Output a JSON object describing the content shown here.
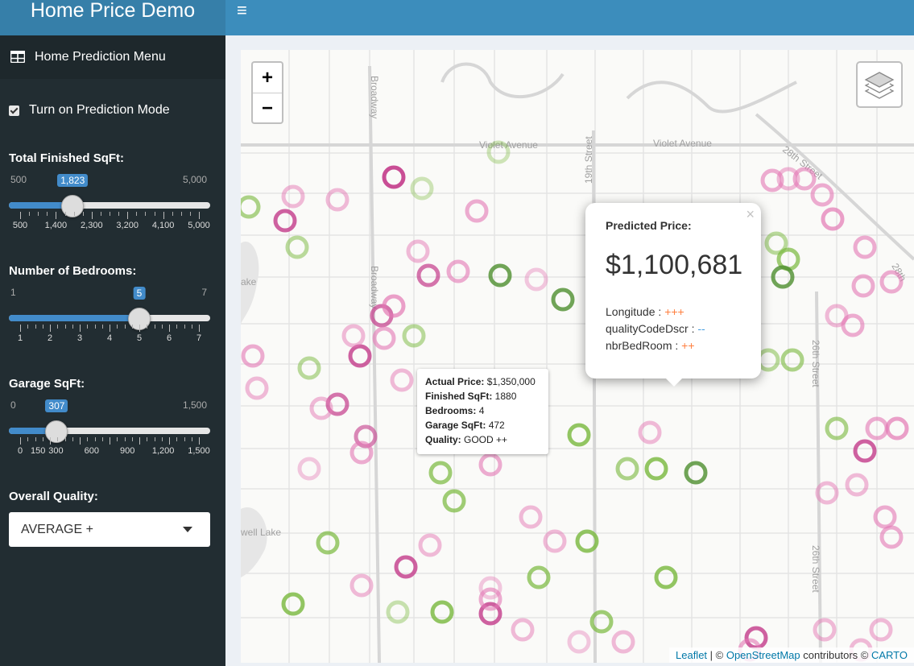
{
  "header": {
    "title": "Home Price Demo",
    "toggle_icon": "hamburger-icon"
  },
  "sidebar": {
    "menu_label": "Home Prediction Menu",
    "menu_icon": "table-icon",
    "prediction_mode": {
      "label": "Turn on Prediction Mode",
      "checked": true
    },
    "sliders": [
      {
        "label": "Total Finished SqFt:",
        "min": 500,
        "max": 5000,
        "value": 1823,
        "min_label": "500",
        "max_label": "5,000",
        "value_label": "1,823",
        "ticks": [
          "500",
          "1,400",
          "2,300",
          "3,200",
          "4,100",
          "5,000"
        ]
      },
      {
        "label": "Number of Bedrooms:",
        "min": 1,
        "max": 7,
        "value": 5,
        "min_label": "1",
        "max_label": "7",
        "value_label": "5",
        "ticks": [
          "1",
          "2",
          "3",
          "4",
          "5",
          "6",
          "7"
        ]
      },
      {
        "label": "Garage SqFt:",
        "min": 0,
        "max": 1500,
        "value": 307,
        "min_label": "0",
        "max_label": "1,500",
        "value_label": "307",
        "ticks": [
          "0",
          "150",
          "300",
          "600",
          "900",
          "1,200",
          "1,500"
        ]
      }
    ],
    "quality": {
      "label": "Overall Quality:",
      "value": "AVERAGE +"
    }
  },
  "map": {
    "streets": [
      "Broadway",
      "Violet Avenue",
      "Violet Avenue",
      "19th Street",
      "28th Street",
      "26th Street",
      "26th Street",
      "Broadway",
      "28th",
      "ake",
      "well Lake"
    ],
    "zoom_in": "+",
    "zoom_out": "−",
    "layers_icon": "layers-icon",
    "attribution": {
      "leaflet": "Leaflet",
      "sep": " | © ",
      "osm": "OpenStreetMap",
      "mid": " contributors © ",
      "carto": "CARTO"
    },
    "hover": {
      "actual_price_label": "Actual Price:",
      "actual_price": "$1,350,000",
      "sqft_label": "Finished SqFt:",
      "sqft": "1880",
      "bedrooms_label": "Bedrooms:",
      "bedrooms": "4",
      "garage_label": "Garage SqFt:",
      "garage": "472",
      "quality_label": "Quality:",
      "quality": "GOOD ++"
    },
    "popup": {
      "title": "Predicted Price:",
      "price": "$1,100,681",
      "close": "×",
      "features": [
        {
          "name": "Longitude :",
          "effect": "+++",
          "sign": "pos"
        },
        {
          "name": "qualityCodeDscr :",
          "effect": "--",
          "sign": "neg"
        },
        {
          "name": "nbrBedRoom :",
          "effect": "++",
          "sign": "pos"
        }
      ]
    },
    "colors": {
      "pink": "#e377b4",
      "green": "#78b83c",
      "dark_pink": "#c33b8a",
      "dark_green": "#4e8f2e"
    }
  }
}
